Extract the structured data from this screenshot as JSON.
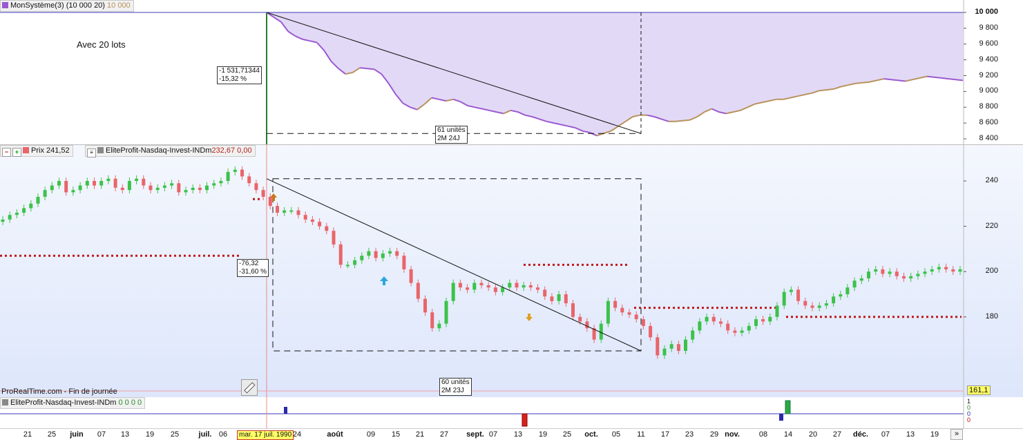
{
  "equity_header": {
    "name": "MonSystème(3)",
    "params": "(10 000 20)",
    "value": "10 000"
  },
  "equity_note": "Avec 20 lots",
  "equity_drawdown_box": {
    "line1": "-1 531,71344",
    "line2": "-15,32 %"
  },
  "equity_duration_box": {
    "line1": "61 unités",
    "line2": "2M 24J"
  },
  "equity_axis": [
    "10 000",
    "9 800",
    "9 600",
    "9 400",
    "9 200",
    "9 000",
    "8 800",
    "8 600",
    "8 400"
  ],
  "price_header": {
    "price_label": "Prix 241,52",
    "indicator_label": "EliteProfit-Nasdaq-Invest-INDm",
    "indicator_value": "232,67",
    "indicator_value2": "0,00"
  },
  "price_drawdown_box": {
    "line1": "-76,32",
    "line2": "-31,60 %"
  },
  "price_duration_box": {
    "line1": "60 unités",
    "line2": "2M 23J"
  },
  "price_axis": [
    "240",
    "220",
    "200",
    "180"
  ],
  "last_price_tag": "161,1",
  "footer_note": "ProRealTime.com - Fin de journée",
  "indicator_header": {
    "name": "EliteProfit-Nasdaq-Invest-INDm",
    "values": "0  0  0  0"
  },
  "indicator_axis": [
    "1",
    "0",
    "0",
    "0"
  ],
  "cursor_date": "mar. 17 juil. 1990",
  "date_labels": [
    {
      "t": "21",
      "b": false
    },
    {
      "t": "25",
      "b": false
    },
    {
      "t": "juin",
      "b": true
    },
    {
      "t": "07",
      "b": false
    },
    {
      "t": "13",
      "b": false
    },
    {
      "t": "19",
      "b": false
    },
    {
      "t": "25",
      "b": false
    },
    {
      "t": "juil.",
      "b": true
    },
    {
      "t": "06",
      "b": false
    },
    {
      "t": "24",
      "b": false
    },
    {
      "t": "août",
      "b": true
    },
    {
      "t": "09",
      "b": false
    },
    {
      "t": "15",
      "b": false
    },
    {
      "t": "21",
      "b": false
    },
    {
      "t": "27",
      "b": false
    },
    {
      "t": "sept.",
      "b": true
    },
    {
      "t": "07",
      "b": false
    },
    {
      "t": "13",
      "b": false
    },
    {
      "t": "19",
      "b": false
    },
    {
      "t": "25",
      "b": false
    },
    {
      "t": "oct.",
      "b": true
    },
    {
      "t": "05",
      "b": false
    },
    {
      "t": "11",
      "b": false
    },
    {
      "t": "17",
      "b": false
    },
    {
      "t": "23",
      "b": false
    },
    {
      "t": "29",
      "b": false
    },
    {
      "t": "nov.",
      "b": true
    },
    {
      "t": "08",
      "b": false
    },
    {
      "t": "14",
      "b": false
    },
    {
      "t": "20",
      "b": false
    },
    {
      "t": "27",
      "b": false
    },
    {
      "t": "déc.",
      "b": true
    },
    {
      "t": "07",
      "b": false
    },
    {
      "t": "13",
      "b": false
    },
    {
      "t": "19",
      "b": false
    }
  ],
  "scroll_button": "»",
  "colors": {
    "up": "#3cc24a",
    "down": "#e8656a",
    "equity_fill": "#e2d9f6",
    "equity_line_down": "#9b59d0",
    "equity_line_up": "#b8925a",
    "signal_dots": "#c0171b",
    "axis_line": "#3a39b8"
  },
  "icons": {
    "ruler": "ruler-icon",
    "zoom_in": "zoom-in-icon",
    "zoom_out": "zoom-out-icon",
    "settings": "settings-icon"
  },
  "chart_data": {
    "type": "candlestick",
    "price_closes": [
      223,
      225,
      226,
      228,
      230,
      233,
      236,
      238,
      240,
      235,
      236,
      238,
      240,
      238,
      240,
      241,
      237,
      236,
      240,
      241,
      238,
      236,
      237,
      238,
      239,
      235,
      236,
      237,
      236,
      238,
      239,
      240,
      244,
      245,
      242,
      239,
      236,
      233,
      229,
      226,
      227,
      227,
      225,
      223,
      222,
      220,
      218,
      212,
      203,
      203,
      205,
      207,
      209,
      206,
      208,
      209,
      207,
      201,
      195,
      188,
      182,
      175,
      177,
      187,
      195,
      193,
      192,
      195,
      194,
      193,
      191,
      193,
      195,
      193,
      194,
      193,
      192,
      189,
      187,
      190,
      186,
      180,
      178,
      175,
      170,
      177,
      187,
      184,
      182,
      181,
      179,
      176,
      171,
      163,
      166,
      168,
      165,
      170,
      174,
      178,
      180,
      178,
      177,
      174,
      173,
      174,
      176,
      179,
      178,
      180,
      185,
      191,
      192,
      187,
      185,
      184,
      185,
      186,
      189,
      190,
      193,
      196,
      197,
      200,
      201,
      199,
      200,
      198,
      197,
      198,
      199,
      200,
      201,
      202,
      201,
      200,
      201
    ],
    "equity_values": [
      10000,
      9940,
      9880,
      9760,
      9700,
      9660,
      9640,
      9620,
      9520,
      9380,
      9290,
      9220,
      9240,
      9300,
      9290,
      9280,
      9220,
      9100,
      8960,
      8850,
      8800,
      8770,
      8840,
      8920,
      8900,
      8880,
      8900,
      8870,
      8820,
      8800,
      8780,
      8760,
      8740,
      8720,
      8760,
      8740,
      8700,
      8680,
      8650,
      8620,
      8600,
      8580,
      8560,
      8540,
      8500,
      8480,
      8440,
      8470,
      8500,
      8560,
      8620,
      8680,
      8700,
      8700,
      8680,
      8650,
      8620,
      8620,
      8630,
      8640,
      8680,
      8740,
      8780,
      8740,
      8720,
      8740,
      8760,
      8800,
      8840,
      8860,
      8880,
      8900,
      8900,
      8920,
      8940,
      8960,
      8980,
      9010,
      9020,
      9030,
      9060,
      9080,
      9100,
      9110,
      9120,
      9140,
      9160,
      9150,
      9140,
      9130,
      9150,
      9170,
      9190,
      9180,
      9170,
      9160,
      9150,
      9140
    ],
    "price_axis_range": [
      161,
      245
    ],
    "equity_axis_range": [
      8400,
      10000
    ]
  }
}
